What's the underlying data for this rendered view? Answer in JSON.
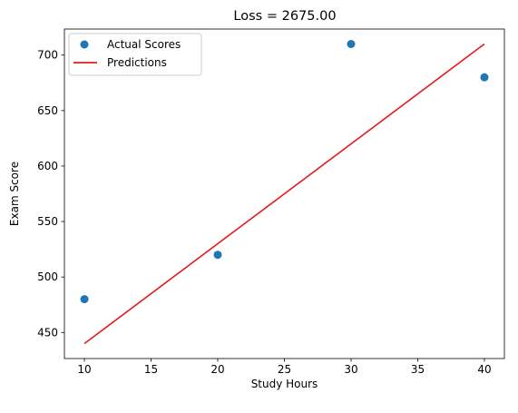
{
  "chart_data": {
    "type": "scatter",
    "title": "Loss = 2675.00",
    "xlabel": "Study Hours",
    "ylabel": "Exam Score",
    "xlim": [
      8.5,
      41.5
    ],
    "ylim": [
      426.5,
      723.5
    ],
    "xticks": [
      10,
      15,
      20,
      25,
      30,
      35,
      40
    ],
    "yticks": [
      450,
      500,
      550,
      600,
      650,
      700
    ],
    "grid": false,
    "legend_position": "top-left",
    "series": [
      {
        "name": "Actual Scores",
        "type": "scatter",
        "color": "#1f77b4",
        "x": [
          10,
          20,
          30,
          40
        ],
        "y": [
          480,
          520,
          710,
          680
        ]
      },
      {
        "name": "Predictions",
        "type": "line",
        "color": "#e41a1c",
        "x": [
          10,
          40
        ],
        "y": [
          440,
          710
        ]
      }
    ]
  }
}
